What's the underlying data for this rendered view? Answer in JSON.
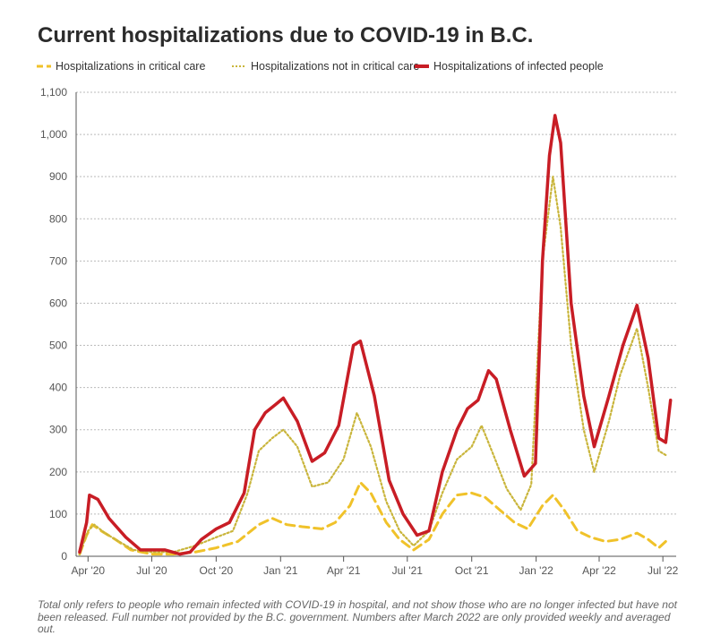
{
  "chart_data": {
    "type": "line",
    "title": "Current hospitalizations due to COVID-19 in B.C.",
    "footnote": "Total only refers to people who remain infected with COVID-19 in hospital, and not show those who are no longer infected but have not been released. Full number not provided by the B.C. government. Numbers after March 2022 are only provided weekly and averaged out.",
    "y_ticks": [
      "0",
      "100",
      "200",
      "300",
      "400",
      "500",
      "600",
      "700",
      "800",
      "900",
      "1,000",
      "1,100"
    ],
    "ylim": [
      0,
      1100
    ],
    "x_ticks": [
      {
        "label": "Apr '20",
        "date": "2020-04-01"
      },
      {
        "label": "Jul '20",
        "date": "2020-07-01"
      },
      {
        "label": "Oct '20",
        "date": "2020-10-01"
      },
      {
        "label": "Jan '21",
        "date": "2021-01-01"
      },
      {
        "label": "Apr '21",
        "date": "2021-04-01"
      },
      {
        "label": "Jul '21",
        "date": "2021-07-01"
      },
      {
        "label": "Oct '21",
        "date": "2021-10-01"
      },
      {
        "label": "Jan '22",
        "date": "2022-01-01"
      },
      {
        "label": "Apr '22",
        "date": "2022-04-01"
      },
      {
        "label": "Jul '22",
        "date": "2022-07-01"
      }
    ],
    "grid": true,
    "legend_position": "top-left",
    "series": [
      {
        "name": "Hospitalizations in critical care",
        "color": "#f0c22a",
        "style": "dashed",
        "points": [
          [
            "2020-03-20",
            5
          ],
          [
            "2020-03-30",
            50
          ],
          [
            "2020-04-07",
            75
          ],
          [
            "2020-04-20",
            60
          ],
          [
            "2020-05-10",
            40
          ],
          [
            "2020-06-01",
            15
          ],
          [
            "2020-07-01",
            5
          ],
          [
            "2020-08-01",
            5
          ],
          [
            "2020-09-01",
            10
          ],
          [
            "2020-10-01",
            20
          ],
          [
            "2020-11-01",
            35
          ],
          [
            "2020-12-01",
            75
          ],
          [
            "2020-12-20",
            90
          ],
          [
            "2021-01-10",
            75
          ],
          [
            "2021-02-01",
            70
          ],
          [
            "2021-03-01",
            65
          ],
          [
            "2021-03-20",
            80
          ],
          [
            "2021-04-10",
            120
          ],
          [
            "2021-04-25",
            175
          ],
          [
            "2021-05-10",
            150
          ],
          [
            "2021-06-01",
            80
          ],
          [
            "2021-06-20",
            40
          ],
          [
            "2021-07-10",
            15
          ],
          [
            "2021-08-01",
            40
          ],
          [
            "2021-08-20",
            100
          ],
          [
            "2021-09-10",
            145
          ],
          [
            "2021-10-01",
            150
          ],
          [
            "2021-10-20",
            140
          ],
          [
            "2021-11-10",
            110
          ],
          [
            "2021-12-01",
            80
          ],
          [
            "2021-12-20",
            65
          ],
          [
            "2022-01-10",
            120
          ],
          [
            "2022-01-25",
            145
          ],
          [
            "2022-02-10",
            110
          ],
          [
            "2022-03-01",
            60
          ],
          [
            "2022-03-20",
            45
          ],
          [
            "2022-04-10",
            35
          ],
          [
            "2022-05-01",
            40
          ],
          [
            "2022-05-25",
            55
          ],
          [
            "2022-06-10",
            40
          ],
          [
            "2022-06-25",
            20
          ],
          [
            "2022-07-05",
            35
          ]
        ]
      },
      {
        "name": "Hospitalizations not in critical care",
        "color": "#c9b53b",
        "style": "dotted",
        "points": [
          [
            "2020-03-20",
            5
          ],
          [
            "2020-04-01",
            60
          ],
          [
            "2020-04-10",
            75
          ],
          [
            "2020-04-25",
            55
          ],
          [
            "2020-05-15",
            35
          ],
          [
            "2020-06-05",
            15
          ],
          [
            "2020-07-01",
            10
          ],
          [
            "2020-08-01",
            10
          ],
          [
            "2020-09-01",
            25
          ],
          [
            "2020-10-01",
            45
          ],
          [
            "2020-10-25",
            60
          ],
          [
            "2020-11-15",
            150
          ],
          [
            "2020-12-01",
            250
          ],
          [
            "2020-12-20",
            280
          ],
          [
            "2021-01-05",
            300
          ],
          [
            "2021-01-25",
            260
          ],
          [
            "2021-02-15",
            165
          ],
          [
            "2021-03-10",
            175
          ],
          [
            "2021-04-01",
            230
          ],
          [
            "2021-04-20",
            340
          ],
          [
            "2021-05-10",
            260
          ],
          [
            "2021-06-01",
            130
          ],
          [
            "2021-06-20",
            60
          ],
          [
            "2021-07-10",
            25
          ],
          [
            "2021-08-01",
            60
          ],
          [
            "2021-08-20",
            150
          ],
          [
            "2021-09-10",
            230
          ],
          [
            "2021-10-01",
            260
          ],
          [
            "2021-10-15",
            310
          ],
          [
            "2021-11-01",
            240
          ],
          [
            "2021-11-20",
            160
          ],
          [
            "2021-12-10",
            110
          ],
          [
            "2021-12-25",
            170
          ],
          [
            "2022-01-10",
            700
          ],
          [
            "2022-01-25",
            900
          ],
          [
            "2022-02-05",
            780
          ],
          [
            "2022-02-20",
            500
          ],
          [
            "2022-03-10",
            300
          ],
          [
            "2022-03-25",
            200
          ],
          [
            "2022-04-15",
            320
          ],
          [
            "2022-05-01",
            430
          ],
          [
            "2022-05-25",
            540
          ],
          [
            "2022-06-10",
            400
          ],
          [
            "2022-06-25",
            250
          ],
          [
            "2022-07-05",
            240
          ]
        ]
      },
      {
        "name": "Hospitalizations of infected people",
        "color": "#c81d25",
        "style": "solid",
        "points": [
          [
            "2020-03-20",
            10
          ],
          [
            "2020-03-30",
            80
          ],
          [
            "2020-04-03",
            145
          ],
          [
            "2020-04-15",
            135
          ],
          [
            "2020-05-01",
            90
          ],
          [
            "2020-05-25",
            45
          ],
          [
            "2020-06-15",
            15
          ],
          [
            "2020-07-01",
            15
          ],
          [
            "2020-07-20",
            15
          ],
          [
            "2020-08-10",
            5
          ],
          [
            "2020-08-25",
            10
          ],
          [
            "2020-09-10",
            40
          ],
          [
            "2020-10-01",
            65
          ],
          [
            "2020-10-20",
            80
          ],
          [
            "2020-11-10",
            150
          ],
          [
            "2020-11-25",
            300
          ],
          [
            "2020-12-10",
            340
          ],
          [
            "2020-12-25",
            360
          ],
          [
            "2021-01-05",
            375
          ],
          [
            "2021-01-25",
            320
          ],
          [
            "2021-02-15",
            225
          ],
          [
            "2021-03-05",
            245
          ],
          [
            "2021-03-25",
            310
          ],
          [
            "2021-04-15",
            500
          ],
          [
            "2021-04-25",
            510
          ],
          [
            "2021-05-15",
            380
          ],
          [
            "2021-06-05",
            180
          ],
          [
            "2021-06-25",
            100
          ],
          [
            "2021-07-15",
            50
          ],
          [
            "2021-08-01",
            60
          ],
          [
            "2021-08-20",
            200
          ],
          [
            "2021-09-10",
            300
          ],
          [
            "2021-09-25",
            350
          ],
          [
            "2021-10-10",
            370
          ],
          [
            "2021-10-25",
            440
          ],
          [
            "2021-11-05",
            420
          ],
          [
            "2021-11-25",
            300
          ],
          [
            "2021-12-15",
            190
          ],
          [
            "2021-12-31",
            220
          ],
          [
            "2022-01-10",
            700
          ],
          [
            "2022-01-20",
            950
          ],
          [
            "2022-01-28",
            1045
          ],
          [
            "2022-02-05",
            980
          ],
          [
            "2022-02-20",
            600
          ],
          [
            "2022-03-10",
            380
          ],
          [
            "2022-03-25",
            260
          ],
          [
            "2022-04-15",
            380
          ],
          [
            "2022-05-05",
            500
          ],
          [
            "2022-05-25",
            595
          ],
          [
            "2022-06-10",
            470
          ],
          [
            "2022-06-25",
            280
          ],
          [
            "2022-07-05",
            270
          ],
          [
            "2022-07-12",
            370
          ]
        ]
      }
    ]
  }
}
